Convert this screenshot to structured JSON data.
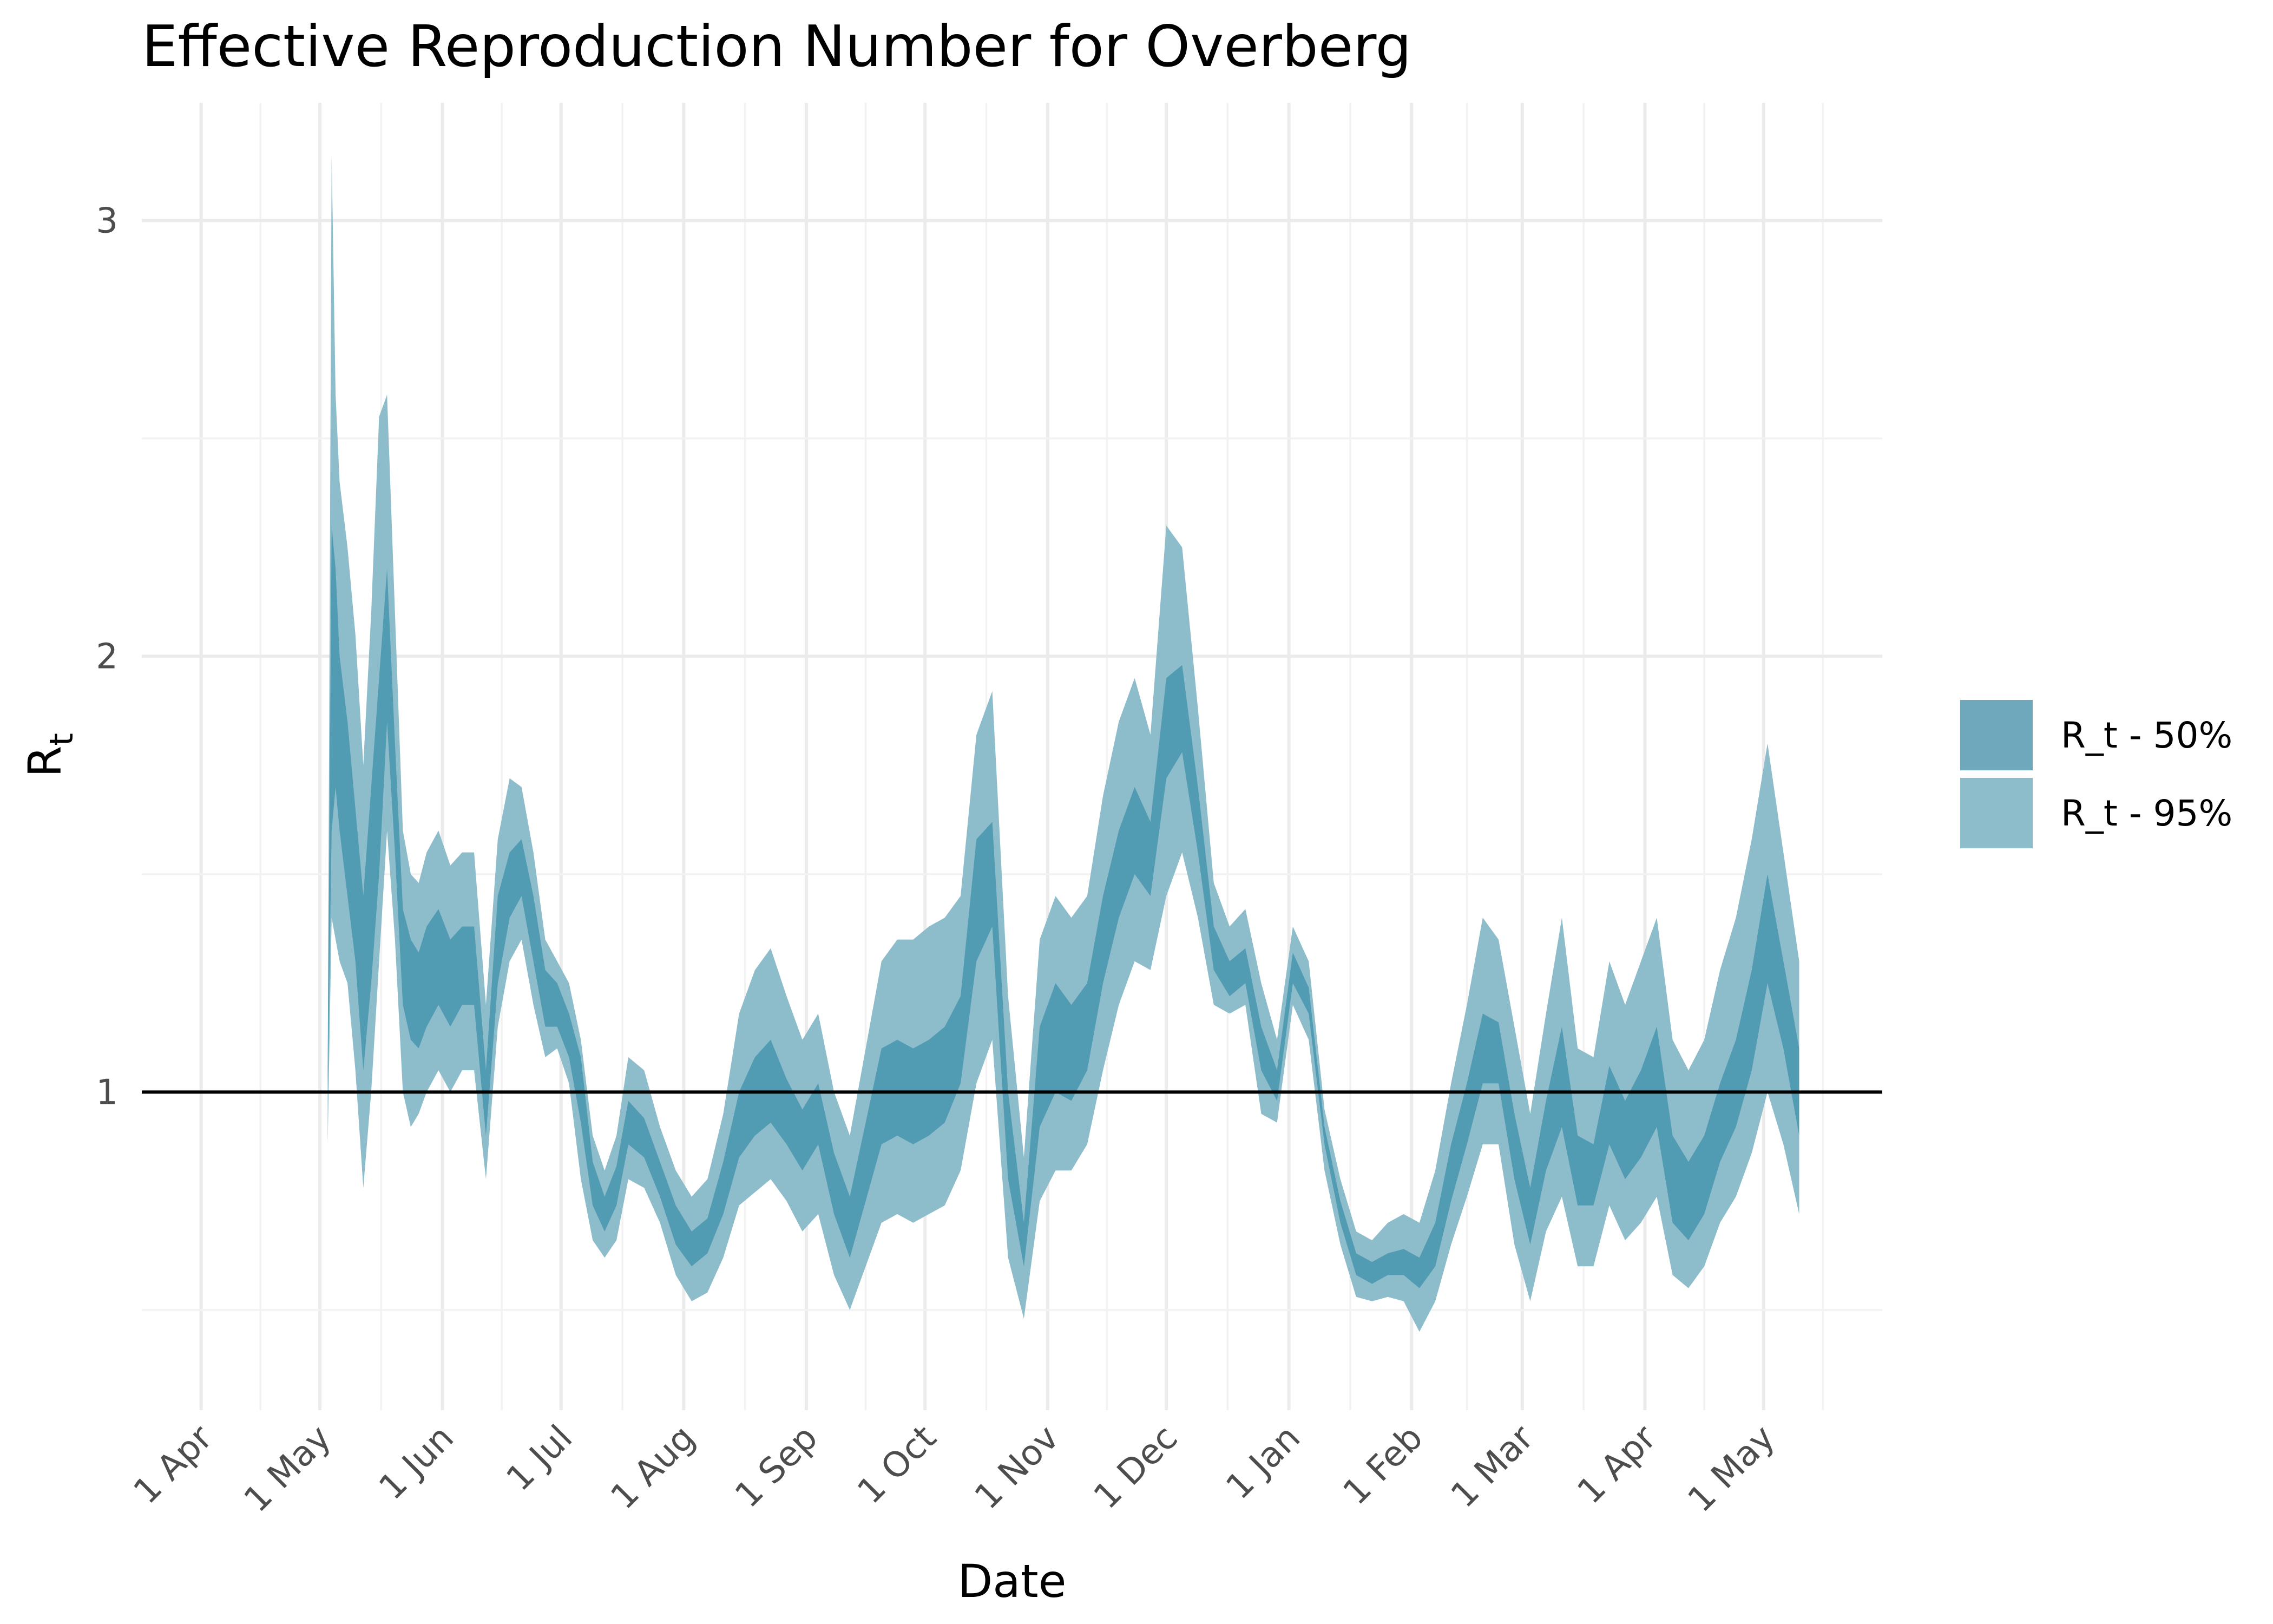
{
  "chart_data": {
    "type": "area",
    "title": "Effective Reproduction Number for Overberg",
    "xlabel": "Date",
    "ylabel": "R",
    "ylabel_subscript": "t",
    "x_ticks": [
      {
        "date": "2020-04-01",
        "label": "1 Apr"
      },
      {
        "date": "2020-05-01",
        "label": "1 May"
      },
      {
        "date": "2020-06-01",
        "label": "1 Jun"
      },
      {
        "date": "2020-07-01",
        "label": "1 Jul"
      },
      {
        "date": "2020-08-01",
        "label": "1 Aug"
      },
      {
        "date": "2020-09-01",
        "label": "1 Sep"
      },
      {
        "date": "2020-10-01",
        "label": "1 Oct"
      },
      {
        "date": "2020-11-01",
        "label": "1 Nov"
      },
      {
        "date": "2020-12-01",
        "label": "1 Dec"
      },
      {
        "date": "2021-01-01",
        "label": "1 Jan"
      },
      {
        "date": "2021-02-01",
        "label": "1 Feb"
      },
      {
        "date": "2021-03-01",
        "label": "1 Mar"
      },
      {
        "date": "2021-04-01",
        "label": "1 Apr"
      },
      {
        "date": "2021-05-01",
        "label": "1 May"
      }
    ],
    "xlim": [
      "2020-03-17",
      "2021-05-31"
    ],
    "y_ticks": [
      {
        "value": 1,
        "label": "1"
      },
      {
        "value": 2,
        "label": "2"
      },
      {
        "value": 3,
        "label": "3"
      }
    ],
    "ylim": [
      0.27,
      3.27
    ],
    "grid": true,
    "reference_line": 1,
    "legend_position": "right",
    "colors": {
      "band50": "#4a97b0",
      "band95": "#8dbccb",
      "legend50": "#6fa8bd",
      "legend95": "#8dbccb"
    },
    "series": [
      {
        "name": "R_t - 50%",
        "x": [
          "2020-05-03",
          "2020-05-04",
          "2020-05-05",
          "2020-05-06",
          "2020-05-08",
          "2020-05-10",
          "2020-05-12",
          "2020-05-14",
          "2020-05-16",
          "2020-05-18",
          "2020-05-20",
          "2020-05-22",
          "2020-05-24",
          "2020-05-26",
          "2020-05-28",
          "2020-05-31",
          "2020-06-03",
          "2020-06-06",
          "2020-06-09",
          "2020-06-12",
          "2020-06-15",
          "2020-06-18",
          "2020-06-21",
          "2020-06-24",
          "2020-06-27",
          "2020-06-30",
          "2020-07-03",
          "2020-07-06",
          "2020-07-09",
          "2020-07-12",
          "2020-07-15",
          "2020-07-18",
          "2020-07-22",
          "2020-07-26",
          "2020-07-30",
          "2020-08-03",
          "2020-08-07",
          "2020-08-11",
          "2020-08-15",
          "2020-08-19",
          "2020-08-23",
          "2020-08-27",
          "2020-08-31",
          "2020-09-04",
          "2020-09-08",
          "2020-09-12",
          "2020-09-16",
          "2020-09-20",
          "2020-09-24",
          "2020-09-28",
          "2020-10-02",
          "2020-10-06",
          "2020-10-10",
          "2020-10-14",
          "2020-10-18",
          "2020-10-22",
          "2020-10-26",
          "2020-10-30",
          "2020-11-03",
          "2020-11-07",
          "2020-11-11",
          "2020-11-15",
          "2020-11-19",
          "2020-11-23",
          "2020-11-27",
          "2020-12-01",
          "2020-12-05",
          "2020-12-09",
          "2020-12-13",
          "2020-12-17",
          "2020-12-21",
          "2020-12-25",
          "2020-12-29",
          "2021-01-02",
          "2021-01-06",
          "2021-01-10",
          "2021-01-14",
          "2021-01-18",
          "2021-01-22",
          "2021-01-26",
          "2021-01-30",
          "2021-02-03",
          "2021-02-07",
          "2021-02-11",
          "2021-02-15",
          "2021-02-19",
          "2021-02-23",
          "2021-02-27",
          "2021-03-03",
          "2021-03-07",
          "2021-03-11",
          "2021-03-15",
          "2021-03-19",
          "2021-03-23",
          "2021-03-27",
          "2021-03-31",
          "2021-04-04",
          "2021-04-08",
          "2021-04-12",
          "2021-04-16",
          "2021-04-20",
          "2021-04-24",
          "2021-04-28",
          "2021-05-02",
          "2021-05-06",
          "2021-05-10"
        ],
        "low": [
          1.0,
          1.6,
          1.7,
          1.6,
          1.45,
          1.3,
          1.05,
          1.25,
          1.5,
          1.85,
          1.55,
          1.2,
          1.12,
          1.1,
          1.15,
          1.2,
          1.15,
          1.2,
          1.2,
          0.9,
          1.25,
          1.4,
          1.45,
          1.3,
          1.15,
          1.15,
          1.08,
          0.93,
          0.74,
          0.68,
          0.74,
          0.88,
          0.85,
          0.76,
          0.65,
          0.6,
          0.63,
          0.72,
          0.85,
          0.9,
          0.93,
          0.88,
          0.82,
          0.88,
          0.72,
          0.62,
          0.75,
          0.88,
          0.9,
          0.88,
          0.9,
          0.93,
          1.02,
          1.3,
          1.38,
          0.8,
          0.6,
          0.92,
          1.0,
          0.98,
          1.05,
          1.25,
          1.4,
          1.5,
          1.45,
          1.72,
          1.78,
          1.55,
          1.28,
          1.22,
          1.25,
          1.05,
          0.98,
          1.25,
          1.18,
          0.88,
          0.7,
          0.58,
          0.56,
          0.58,
          0.58,
          0.55,
          0.6,
          0.75,
          0.88,
          1.02,
          1.02,
          0.8,
          0.65,
          0.82,
          0.92,
          0.74,
          0.74,
          0.88,
          0.8,
          0.85,
          0.92,
          0.7,
          0.66,
          0.72,
          0.84,
          0.92,
          1.05,
          1.25,
          1.1,
          0.9
        ],
        "high": [
          1.05,
          2.3,
          2.2,
          2.0,
          1.85,
          1.65,
          1.45,
          1.7,
          1.95,
          2.2,
          1.8,
          1.42,
          1.35,
          1.32,
          1.38,
          1.42,
          1.35,
          1.38,
          1.38,
          1.05,
          1.45,
          1.55,
          1.58,
          1.45,
          1.28,
          1.25,
          1.18,
          1.08,
          0.84,
          0.76,
          0.83,
          0.98,
          0.94,
          0.84,
          0.74,
          0.68,
          0.71,
          0.84,
          1.0,
          1.08,
          1.12,
          1.03,
          0.96,
          1.02,
          0.86,
          0.76,
          0.93,
          1.1,
          1.12,
          1.1,
          1.12,
          1.15,
          1.22,
          1.58,
          1.62,
          1.0,
          0.7,
          1.15,
          1.25,
          1.2,
          1.25,
          1.45,
          1.6,
          1.7,
          1.62,
          1.95,
          1.98,
          1.7,
          1.38,
          1.3,
          1.33,
          1.15,
          1.05,
          1.32,
          1.24,
          0.92,
          0.75,
          0.63,
          0.61,
          0.63,
          0.64,
          0.62,
          0.7,
          0.88,
          1.02,
          1.18,
          1.16,
          0.95,
          0.78,
          0.98,
          1.15,
          0.9,
          0.88,
          1.06,
          0.98,
          1.05,
          1.15,
          0.9,
          0.84,
          0.9,
          1.02,
          1.12,
          1.28,
          1.5,
          1.3,
          1.1
        ]
      },
      {
        "name": "R_t - 95%",
        "x": [
          "2020-05-03",
          "2020-05-04",
          "2020-05-05",
          "2020-05-06",
          "2020-05-08",
          "2020-05-10",
          "2020-05-12",
          "2020-05-14",
          "2020-05-16",
          "2020-05-18",
          "2020-05-20",
          "2020-05-22",
          "2020-05-24",
          "2020-05-26",
          "2020-05-28",
          "2020-05-31",
          "2020-06-03",
          "2020-06-06",
          "2020-06-09",
          "2020-06-12",
          "2020-06-15",
          "2020-06-18",
          "2020-06-21",
          "2020-06-24",
          "2020-06-27",
          "2020-06-30",
          "2020-07-03",
          "2020-07-06",
          "2020-07-09",
          "2020-07-12",
          "2020-07-15",
          "2020-07-18",
          "2020-07-22",
          "2020-07-26",
          "2020-07-30",
          "2020-08-03",
          "2020-08-07",
          "2020-08-11",
          "2020-08-15",
          "2020-08-19",
          "2020-08-23",
          "2020-08-27",
          "2020-08-31",
          "2020-09-04",
          "2020-09-08",
          "2020-09-12",
          "2020-09-16",
          "2020-09-20",
          "2020-09-24",
          "2020-09-28",
          "2020-10-02",
          "2020-10-06",
          "2020-10-10",
          "2020-10-14",
          "2020-10-18",
          "2020-10-22",
          "2020-10-26",
          "2020-10-30",
          "2020-11-03",
          "2020-11-07",
          "2020-11-11",
          "2020-11-15",
          "2020-11-19",
          "2020-11-23",
          "2020-11-27",
          "2020-12-01",
          "2020-12-05",
          "2020-12-09",
          "2020-12-13",
          "2020-12-17",
          "2020-12-21",
          "2020-12-25",
          "2020-12-29",
          "2021-01-02",
          "2021-01-06",
          "2021-01-10",
          "2021-01-14",
          "2021-01-18",
          "2021-01-22",
          "2021-01-26",
          "2021-01-30",
          "2021-02-03",
          "2021-02-07",
          "2021-02-11",
          "2021-02-15",
          "2021-02-19",
          "2021-02-23",
          "2021-02-27",
          "2021-03-03",
          "2021-03-07",
          "2021-03-11",
          "2021-03-15",
          "2021-03-19",
          "2021-03-23",
          "2021-03-27",
          "2021-03-31",
          "2021-04-04",
          "2021-04-08",
          "2021-04-12",
          "2021-04-16",
          "2021-04-20",
          "2021-04-24",
          "2021-04-28",
          "2021-05-02",
          "2021-05-06",
          "2021-05-10"
        ],
        "low": [
          0.88,
          1.4,
          1.35,
          1.3,
          1.25,
          1.05,
          0.78,
          1.0,
          1.3,
          1.6,
          1.35,
          1.0,
          0.92,
          0.95,
          1.0,
          1.05,
          1.0,
          1.05,
          1.05,
          0.8,
          1.15,
          1.3,
          1.35,
          1.2,
          1.08,
          1.1,
          1.02,
          0.8,
          0.66,
          0.62,
          0.66,
          0.8,
          0.78,
          0.7,
          0.58,
          0.52,
          0.54,
          0.62,
          0.74,
          0.77,
          0.8,
          0.75,
          0.68,
          0.72,
          0.58,
          0.5,
          0.6,
          0.7,
          0.72,
          0.7,
          0.72,
          0.74,
          0.82,
          1.02,
          1.12,
          0.62,
          0.48,
          0.75,
          0.82,
          0.82,
          0.88,
          1.05,
          1.2,
          1.3,
          1.28,
          1.45,
          1.55,
          1.4,
          1.2,
          1.18,
          1.2,
          0.95,
          0.93,
          1.2,
          1.12,
          0.82,
          0.65,
          0.53,
          0.52,
          0.53,
          0.52,
          0.45,
          0.52,
          0.65,
          0.76,
          0.88,
          0.88,
          0.65,
          0.52,
          0.68,
          0.76,
          0.6,
          0.6,
          0.74,
          0.66,
          0.7,
          0.76,
          0.58,
          0.55,
          0.6,
          0.7,
          0.76,
          0.86,
          1.0,
          0.88,
          0.72
        ],
        "high": [
          1.05,
          3.15,
          2.6,
          2.4,
          2.25,
          2.05,
          1.75,
          2.1,
          2.55,
          2.6,
          2.1,
          1.6,
          1.5,
          1.48,
          1.55,
          1.6,
          1.52,
          1.55,
          1.55,
          1.2,
          1.58,
          1.72,
          1.7,
          1.55,
          1.35,
          1.3,
          1.25,
          1.12,
          0.9,
          0.82,
          0.9,
          1.08,
          1.05,
          0.92,
          0.82,
          0.76,
          0.8,
          0.95,
          1.18,
          1.28,
          1.33,
          1.22,
          1.12,
          1.18,
          1.0,
          0.9,
          1.1,
          1.3,
          1.35,
          1.35,
          1.38,
          1.4,
          1.45,
          1.82,
          1.92,
          1.22,
          0.85,
          1.35,
          1.45,
          1.4,
          1.45,
          1.68,
          1.85,
          1.95,
          1.82,
          2.3,
          2.25,
          1.88,
          1.48,
          1.38,
          1.42,
          1.25,
          1.12,
          1.38,
          1.3,
          0.96,
          0.8,
          0.68,
          0.66,
          0.7,
          0.72,
          0.7,
          0.82,
          1.02,
          1.2,
          1.4,
          1.35,
          1.15,
          0.95,
          1.18,
          1.4,
          1.1,
          1.08,
          1.3,
          1.2,
          1.3,
          1.4,
          1.12,
          1.05,
          1.12,
          1.28,
          1.4,
          1.58,
          1.8,
          1.55,
          1.3
        ]
      }
    ]
  }
}
